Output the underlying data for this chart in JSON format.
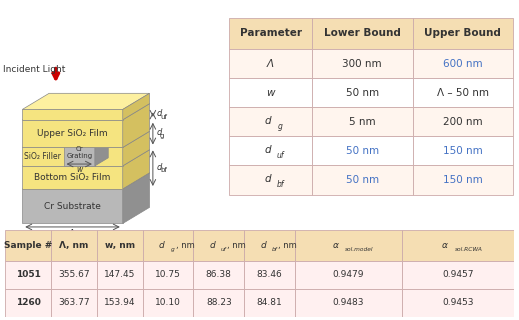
{
  "bg_color": "#ffffff",
  "sio2_color": "#f5e480",
  "cr_color": "#b8b8b8",
  "upper_table": {
    "header": [
      "Parameter",
      "Lower Bound",
      "Upper Bound"
    ],
    "header_bg": "#f5deb3",
    "row_bgs": [
      "#fff5ee",
      "#ffffff",
      "#fff5ee",
      "#ffffff",
      "#fff5ee"
    ],
    "blue_color": "#4472c4",
    "black_color": "#333333",
    "param_labels": [
      [
        "Λ",
        null
      ],
      [
        "w",
        null
      ],
      [
        "d",
        "g"
      ],
      [
        "d",
        "uf"
      ],
      [
        "d",
        "bf"
      ]
    ],
    "lower_bounds": [
      "300 nm",
      "50 nm",
      "5 nm",
      "50 nm",
      "50 nm"
    ],
    "upper_bounds": [
      "600 nm",
      "Λ – 50 nm",
      "200 nm",
      "150 nm",
      "150 nm"
    ],
    "blue_lower": [
      false,
      false,
      false,
      true,
      true
    ],
    "blue_upper": [
      true,
      false,
      false,
      true,
      true
    ]
  },
  "lower_table": {
    "header_bg": "#f5deb3",
    "row_bg": "#fff0f0",
    "col_positions": [
      0,
      9,
      18,
      27,
      37,
      47,
      57,
      78,
      100
    ],
    "rows": [
      [
        "1051",
        "355.67",
        "147.45",
        "10.75",
        "86.38",
        "83.46",
        "0.9479",
        "0.9457"
      ],
      [
        "1260",
        "363.77",
        "153.94",
        "10.10",
        "88.23",
        "84.81",
        "0.9483",
        "0.9453"
      ]
    ]
  }
}
